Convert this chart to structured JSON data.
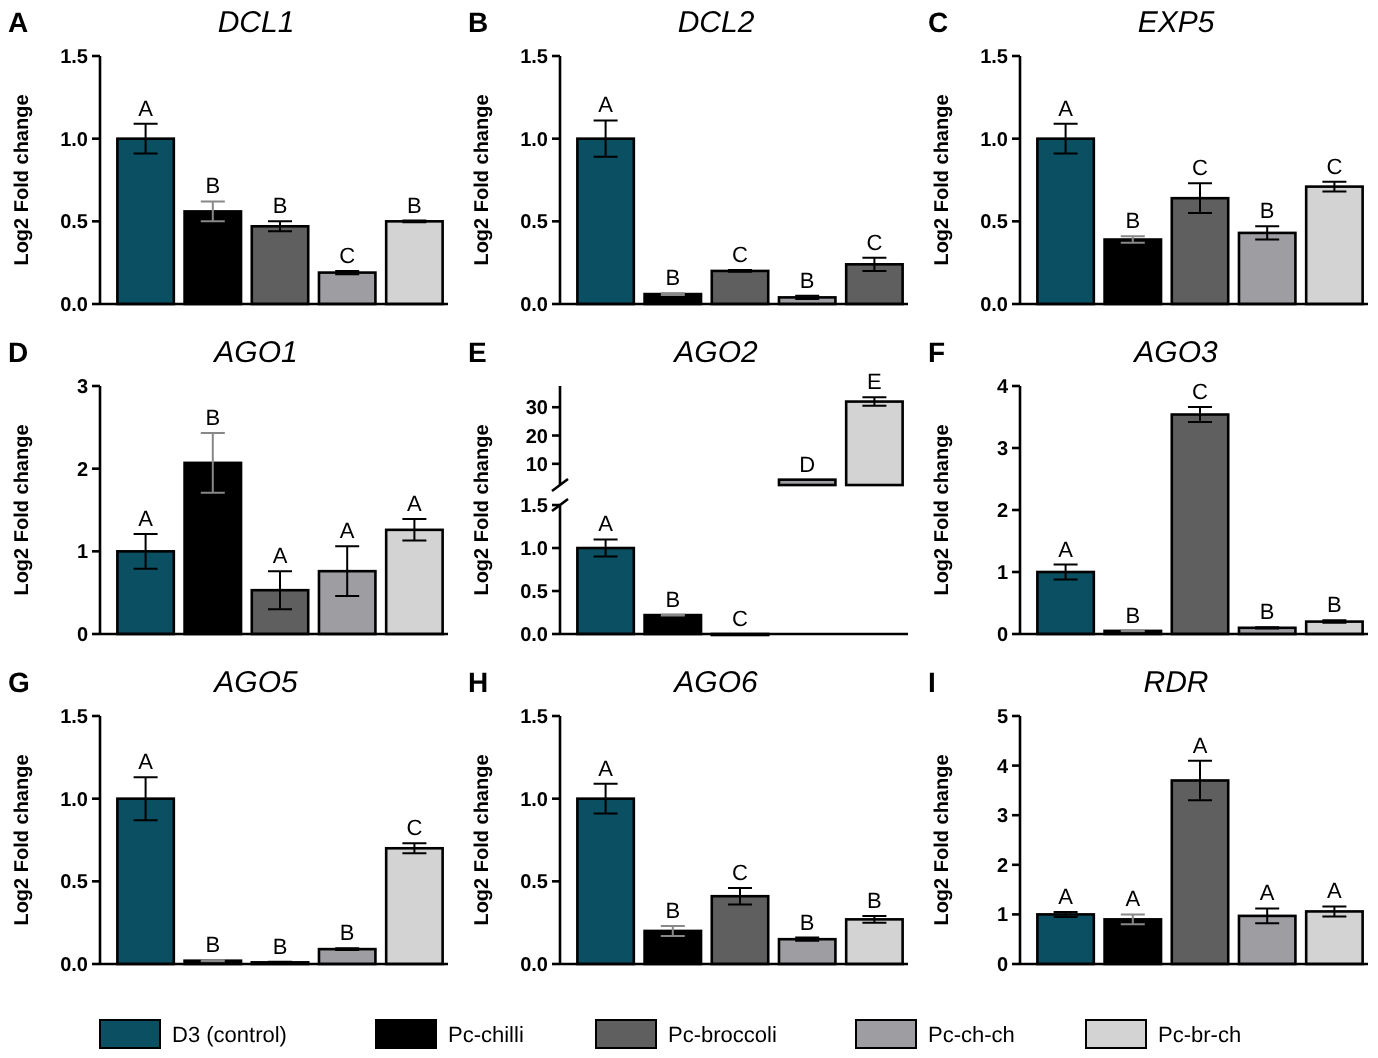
{
  "chart_data": [
    {
      "type": "bar",
      "title": "DCL1",
      "ylabel": "Log2 Fold change",
      "annotations": [
        "A"
      ],
      "categories": [
        null
      ],
      "ylim": [
        0,
        1.5
      ],
      "yticks": [
        {
          "value": 0,
          "label": "0.0"
        },
        {
          "value": 0.5,
          "label": "0.5"
        },
        {
          "value": 1,
          "label": "1.0"
        },
        {
          "value": 1.5,
          "label": "1.5"
        }
      ],
      "tick_labels": "y",
      "series": [
        {
          "color": "#0b4f63",
          "values": [
            1.0
          ],
          "errors": [
            0.09
          ],
          "value_labels": [
            "A"
          ]
        },
        {
          "color": "#000000",
          "values": [
            0.56
          ],
          "errors": [
            0.06
          ],
          "value_labels": [
            "B"
          ]
        },
        {
          "color": "#5f5f5f",
          "values": [
            0.47
          ],
          "errors": [
            0.03
          ],
          "value_labels": [
            "B"
          ]
        },
        {
          "color": "#9d9da2",
          "values": [
            0.19
          ],
          "errors": [
            0.01
          ],
          "value_labels": [
            "C"
          ]
        },
        {
          "color": "#d3d3d3",
          "values": [
            0.5
          ],
          "errors": [
            0.005
          ],
          "value_labels": [
            "B"
          ]
        }
      ]
    },
    {
      "type": "bar",
      "title": "DCL2",
      "ylabel": "Log2 Fold change",
      "annotations": [
        "B"
      ],
      "categories": [
        null
      ],
      "ylim": [
        0,
        1.5
      ],
      "yticks": [
        {
          "value": 0,
          "label": "0.0"
        },
        {
          "value": 0.5,
          "label": "0.5"
        },
        {
          "value": 1,
          "label": "1.0"
        },
        {
          "value": 1.5,
          "label": "1.5"
        }
      ],
      "tick_labels": "y",
      "series": [
        {
          "color": "#0b4f63",
          "values": [
            1.0
          ],
          "errors": [
            0.11
          ],
          "value_labels": [
            "A"
          ]
        },
        {
          "color": "#000000",
          "values": [
            0.06
          ],
          "errors": [
            0.005
          ],
          "value_labels": [
            "B"
          ]
        },
        {
          "color": "#5f5f5f",
          "values": [
            0.2
          ],
          "errors": [
            0.005
          ],
          "value_labels": [
            "C"
          ]
        },
        {
          "color": "#9d9da2",
          "values": [
            0.04
          ],
          "errors": [
            0.01
          ],
          "value_labels": [
            "B"
          ]
        },
        {
          "color": "#5f5f5f",
          "values": [
            0.24
          ],
          "errors": [
            0.04
          ],
          "value_labels": [
            "C"
          ]
        }
      ]
    },
    {
      "type": "bar",
      "title": "EXP5",
      "ylabel": "Log2 Fold change",
      "annotations": [
        "C"
      ],
      "categories": [
        null
      ],
      "ylim": [
        0,
        1.5
      ],
      "yticks": [
        {
          "value": 0,
          "label": "0.0"
        },
        {
          "value": 0.5,
          "label": "0.5"
        },
        {
          "value": 1,
          "label": "1.0"
        },
        {
          "value": 1.5,
          "label": "1.5"
        }
      ],
      "tick_labels": "y",
      "series": [
        {
          "color": "#0b4f63",
          "values": [
            1.0
          ],
          "errors": [
            0.09
          ],
          "value_labels": [
            "A"
          ]
        },
        {
          "color": "#000000",
          "values": [
            0.39
          ],
          "errors": [
            0.02
          ],
          "value_labels": [
            "B"
          ]
        },
        {
          "color": "#5f5f5f",
          "values": [
            0.64
          ],
          "errors": [
            0.09
          ],
          "value_labels": [
            "C"
          ]
        },
        {
          "color": "#9d9da2",
          "values": [
            0.43
          ],
          "errors": [
            0.04
          ],
          "value_labels": [
            "B"
          ]
        },
        {
          "color": "#d3d3d3",
          "values": [
            0.71
          ],
          "errors": [
            0.03
          ],
          "value_labels": [
            "C"
          ]
        }
      ]
    },
    {
      "type": "bar",
      "title": "AGO1",
      "ylabel": "Log2 Fold change",
      "annotations": [
        "D"
      ],
      "categories": [
        null
      ],
      "ylim": [
        0,
        3
      ],
      "yticks": [
        0,
        1,
        2,
        3
      ],
      "tick_labels": "y",
      "series": [
        {
          "color": "#0b4f63",
          "values": [
            1.0
          ],
          "errors": [
            0.21
          ],
          "value_labels": [
            "A"
          ]
        },
        {
          "color": "#000000",
          "values": [
            2.07
          ],
          "errors": [
            0.36
          ],
          "value_labels": [
            "B"
          ]
        },
        {
          "color": "#5f5f5f",
          "values": [
            0.53
          ],
          "errors": [
            0.23
          ],
          "value_labels": [
            "A"
          ]
        },
        {
          "color": "#9d9da2",
          "values": [
            0.76
          ],
          "errors": [
            0.3
          ],
          "value_labels": [
            "A"
          ]
        },
        {
          "color": "#d3d3d3",
          "values": [
            1.26
          ],
          "errors": [
            0.13
          ],
          "value_labels": [
            "A"
          ]
        }
      ]
    },
    {
      "type": "bar",
      "title": "AGO2",
      "ylabel": "Log2 Fold change",
      "annotations": [
        "E"
      ],
      "categories": [
        null
      ],
      "ylim": [
        2.5,
        37.5
      ],
      "yticks": [
        10,
        20,
        30
      ],
      "tick_labels": "y",
      "series": [
        {
          "values": [
            null
          ]
        },
        {
          "values": [
            null
          ]
        },
        {
          "values": [
            null
          ]
        },
        {
          "color": "#9d9da2",
          "values": [
            4.4
          ],
          "value_labels": [
            "D"
          ]
        },
        {
          "color": "#d3d3d3",
          "values": [
            32
          ],
          "errors": [
            1.5
          ],
          "value_labels": [
            "E"
          ]
        }
      ]
    },
    {
      "type": "bar",
      "categories": [
        null
      ],
      "ylim": [
        0,
        1.5
      ],
      "yticks": [
        {
          "value": 0,
          "label": "0.0"
        },
        {
          "value": 0.5,
          "label": "0.5"
        },
        {
          "value": 1,
          "label": "1.0"
        },
        {
          "value": 1.5,
          "label": "1.5"
        }
      ],
      "tick_labels": "y",
      "series": [
        {
          "color": "#0b4f63",
          "values": [
            1.0
          ],
          "errors": [
            0.1
          ],
          "value_labels": [
            "A"
          ]
        },
        {
          "color": "#000000",
          "values": [
            0.22
          ],
          "errors": [
            0.005
          ],
          "value_labels": [
            "B"
          ]
        },
        {
          "color": "#5f5f5f",
          "values": [
            0
          ],
          "value_labels": [
            "C"
          ]
        },
        {
          "values": [
            null
          ]
        },
        {
          "values": [
            null
          ]
        }
      ]
    },
    {
      "type": "bar",
      "title": "AGO3",
      "ylabel": "Log2 Fold change",
      "annotations": [
        "F"
      ],
      "categories": [
        null
      ],
      "ylim": [
        0,
        4
      ],
      "yticks": [
        0,
        1,
        2,
        3,
        4
      ],
      "tick_labels": "y",
      "series": [
        {
          "color": "#0b4f63",
          "values": [
            1.0
          ],
          "errors": [
            0.12
          ],
          "value_labels": [
            "A"
          ]
        },
        {
          "color": "#000000",
          "values": [
            0.05
          ],
          "errors": [
            0.005
          ],
          "value_labels": [
            "B"
          ]
        },
        {
          "color": "#5f5f5f",
          "values": [
            3.54
          ],
          "errors": [
            0.12
          ],
          "value_labels": [
            "C"
          ]
        },
        {
          "color": "#9d9da2",
          "values": [
            0.1
          ],
          "errors": [
            0.01
          ],
          "value_labels": [
            "B"
          ]
        },
        {
          "color": "#d3d3d3",
          "values": [
            0.2
          ],
          "errors": [
            0.02
          ],
          "value_labels": [
            "B"
          ]
        }
      ]
    },
    {
      "type": "bar",
      "title": "AGO5",
      "ylabel": "Log2 Fold change",
      "annotations": [
        "G"
      ],
      "categories": [
        null
      ],
      "ylim": [
        0,
        1.5
      ],
      "yticks": [
        {
          "value": 0,
          "label": "0.0"
        },
        {
          "value": 0.5,
          "label": "0.5"
        },
        {
          "value": 1,
          "label": "1.0"
        },
        {
          "value": 1.5,
          "label": "1.5"
        }
      ],
      "tick_labels": "y",
      "series": [
        {
          "color": "#0b4f63",
          "values": [
            1.0
          ],
          "errors": [
            0.13
          ],
          "value_labels": [
            "A"
          ]
        },
        {
          "color": "#000000",
          "values": [
            0.02
          ],
          "errors": [
            0.003
          ],
          "value_labels": [
            "B"
          ]
        },
        {
          "color": "#5f5f5f",
          "values": [
            0.01
          ],
          "errors": [
            0.003
          ],
          "value_labels": [
            "B"
          ]
        },
        {
          "color": "#9d9da2",
          "values": [
            0.09
          ],
          "errors": [
            0.005
          ],
          "value_labels": [
            "B"
          ]
        },
        {
          "color": "#d3d3d3",
          "values": [
            0.7
          ],
          "errors": [
            0.03
          ],
          "value_labels": [
            "C"
          ]
        }
      ]
    },
    {
      "type": "bar",
      "title": "AGO6",
      "ylabel": "Log2 Fold change",
      "annotations": [
        "H"
      ],
      "categories": [
        null
      ],
      "ylim": [
        0,
        1.5
      ],
      "yticks": [
        {
          "value": 0,
          "label": "0.0"
        },
        {
          "value": 0.5,
          "label": "0.5"
        },
        {
          "value": 1,
          "label": "1.0"
        },
        {
          "value": 1.5,
          "label": "1.5"
        }
      ],
      "tick_labels": "y",
      "series": [
        {
          "color": "#0b4f63",
          "values": [
            1.0
          ],
          "errors": [
            0.09
          ],
          "value_labels": [
            "A"
          ]
        },
        {
          "color": "#000000",
          "values": [
            0.2
          ],
          "errors": [
            0.03
          ],
          "value_labels": [
            "B"
          ]
        },
        {
          "color": "#5f5f5f",
          "values": [
            0.41
          ],
          "errors": [
            0.05
          ],
          "value_labels": [
            "C"
          ]
        },
        {
          "color": "#9d9da2",
          "values": [
            0.15
          ],
          "errors": [
            0.01
          ],
          "value_labels": [
            "B"
          ]
        },
        {
          "color": "#d3d3d3",
          "values": [
            0.27
          ],
          "errors": [
            0.02
          ],
          "value_labels": [
            "B"
          ]
        }
      ]
    },
    {
      "type": "bar",
      "title": "RDR",
      "ylabel": "Log2 Fold change",
      "annotations": [
        "I"
      ],
      "categories": [
        null
      ],
      "ylim": [
        0,
        5
      ],
      "yticks": [
        0,
        1,
        2,
        3,
        4,
        5
      ],
      "tick_labels": "y",
      "legend": "bottom",
      "series": [
        {
          "name": "D3 (control)",
          "color": "#0b4f63",
          "values": [
            1.0
          ],
          "errors": [
            0.05
          ],
          "value_labels": [
            "A"
          ]
        },
        {
          "name": "Pc-chilli",
          "color": "#000000",
          "values": [
            0.9
          ],
          "errors": [
            0.1
          ],
          "value_labels": [
            "A"
          ]
        },
        {
          "name": "Pc-broccoli",
          "color": "#5f5f5f",
          "values": [
            3.7
          ],
          "errors": [
            0.4
          ],
          "value_labels": [
            "A"
          ]
        },
        {
          "name": "Pc-ch-ch",
          "color": "#9d9da2",
          "values": [
            0.97
          ],
          "errors": [
            0.15
          ],
          "value_labels": [
            "A"
          ]
        },
        {
          "name": "Pc-br-ch",
          "color": "#d3d3d3",
          "values": [
            1.06
          ],
          "errors": [
            0.1
          ],
          "value_labels": [
            "A"
          ]
        }
      ]
    }
  ]
}
